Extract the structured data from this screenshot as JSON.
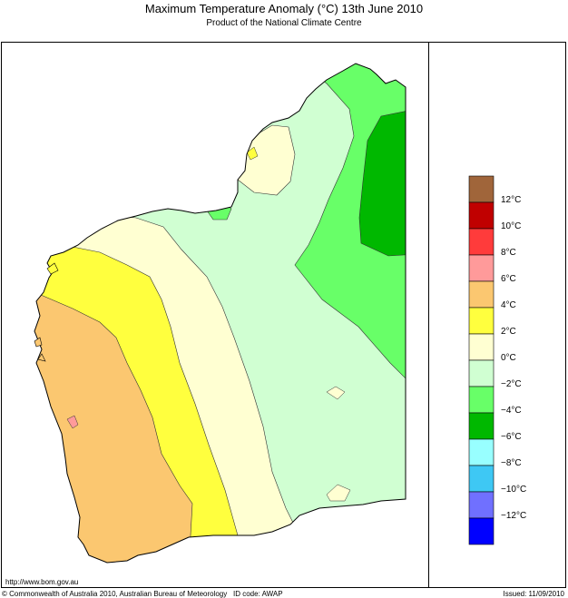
{
  "header": {
    "title": "Maximum Temperature Anomaly (°C)  13th June 2010",
    "subtitle": "Product of the National Climate Centre"
  },
  "legend": {
    "colors": [
      "#a0653a",
      "#c00000",
      "#ff3b3b",
      "#ff9a9a",
      "#fbc770",
      "#ffff3e",
      "#ffffd2",
      "#d0ffd2",
      "#68ff68",
      "#00b800",
      "#98ffff",
      "#3ec8f4",
      "#7070ff",
      "#0000ff"
    ],
    "labels": [
      "12°C",
      "10°C",
      "8°C",
      "6°C",
      "4°C",
      "2°C",
      "0°C",
      "−2°C",
      "−4°C",
      "−6°C",
      "−8°C",
      "−10°C",
      "−12°C"
    ]
  },
  "footer": {
    "url": "http://www.bom.gov.au",
    "copyright": "© Commonwealth of Australia 2010, Australian Bureau of Meteorology",
    "id_code": "ID code: AWAP",
    "issued": "Issued: 11/09/2010"
  }
}
